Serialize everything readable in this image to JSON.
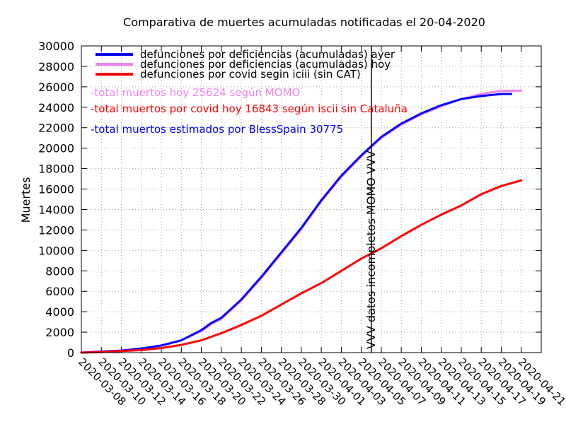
{
  "chart_data": {
    "type": "line",
    "title": "Comparativa de muertes acumuladas notificadas el 20-04-2020",
    "ylabel": "Muertes",
    "xlabel": "",
    "ylim": [
      0,
      30000
    ],
    "yticks": [
      0,
      2000,
      4000,
      6000,
      8000,
      10000,
      12000,
      14000,
      16000,
      18000,
      20000,
      22000,
      24000,
      26000,
      28000,
      30000
    ],
    "xlim_days": [
      0,
      46
    ],
    "xtick_labels": [
      "2020-03-08",
      "2020-03-10",
      "2020-03-12",
      "2020-03-14",
      "2020-03-16",
      "2020-03-18",
      "2020-03-20",
      "2020-03-22",
      "2020-03-24",
      "2020-03-26",
      "2020-03-28",
      "2020-03-30",
      "2020-04-01",
      "2020-04-03",
      "2020-04-05",
      "2020-04-07",
      "2020-04-09",
      "2020-04-11",
      "2020-04-13",
      "2020-04-15",
      "2020-04-17",
      "2020-04-19",
      "2020-04-21"
    ],
    "grid": true,
    "legend_position": "top-left",
    "series": [
      {
        "name": "defunciones por deficiencias (acumuladas) ayer",
        "color": "#0000ff",
        "x": [
          0,
          2,
          4,
          6,
          8,
          10,
          12,
          13,
          14,
          16,
          18,
          20,
          22,
          24,
          26,
          28,
          30,
          32,
          34,
          36,
          38,
          40,
          42,
          43
        ],
        "y": [
          0,
          100,
          200,
          400,
          700,
          1200,
          2200,
          2900,
          3400,
          5200,
          7400,
          9800,
          12200,
          14900,
          17300,
          19300,
          21100,
          22400,
          23400,
          24200,
          24800,
          25100,
          25300,
          25300
        ]
      },
      {
        "name": "defunciones por deficiencias (acumuladas) hoy",
        "color": "#ee82ee",
        "x": [
          0,
          2,
          4,
          6,
          8,
          10,
          12,
          13,
          14,
          16,
          18,
          20,
          22,
          24,
          26,
          28,
          30,
          32,
          34,
          36,
          38,
          40,
          42,
          44
        ],
        "y": [
          0,
          100,
          200,
          400,
          700,
          1200,
          2100,
          2800,
          3300,
          5100,
          7300,
          9700,
          12100,
          14800,
          17200,
          19200,
          21000,
          22300,
          23300,
          24100,
          24800,
          25300,
          25600,
          25624
        ]
      },
      {
        "name": "defunciones por covid segin iciii (sin CAT)",
        "color": "#ff0000",
        "x": [
          0,
          2,
          4,
          6,
          8,
          10,
          12,
          14,
          16,
          18,
          20,
          22,
          24,
          26,
          28,
          30,
          32,
          34,
          36,
          38,
          40,
          42,
          44
        ],
        "y": [
          0,
          50,
          150,
          250,
          450,
          750,
          1200,
          1900,
          2700,
          3600,
          4700,
          5800,
          6800,
          8000,
          9200,
          10200,
          11400,
          12500,
          13500,
          14400,
          15500,
          16300,
          16843
        ]
      }
    ],
    "annotations": [
      {
        "text": "-total muertos hoy 25624 según MOMO",
        "color": "#ee82ee"
      },
      {
        "text": "-total muertos por covid hoy 16843 según iscii sin Cataluña",
        "color": "#ff0000"
      },
      {
        "text": "-total muertos estimados por BlessSpain 30775",
        "color": "#0000ff"
      }
    ],
    "vline": {
      "x": 29,
      "label": "VVV  datos incompletos MOMO  VVV"
    }
  }
}
